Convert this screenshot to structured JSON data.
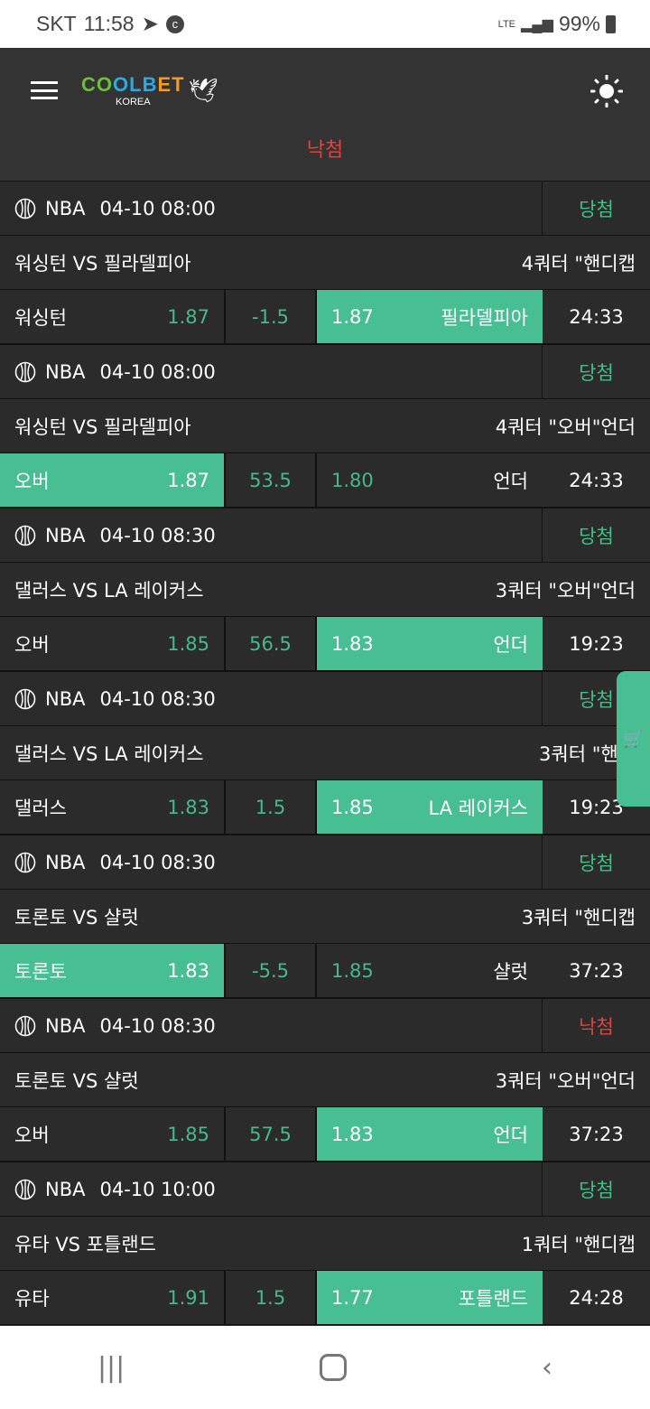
{
  "status": {
    "carrier": "SKT",
    "time": "11:58",
    "network": "LTE",
    "battery": "99%"
  },
  "header": {
    "logo_text": "COOLBET",
    "logo_sub": "KOREA"
  },
  "banner": "낙첨",
  "colors": {
    "accent": "#47bf93",
    "win": "#3ec184",
    "lose": "#e0423e"
  },
  "bets": [
    {
      "league": "NBA",
      "datetime": "04-10 08:00",
      "result": "당첨",
      "result_type": "win",
      "match": "워싱턴 VS 필라델피아",
      "market": "4쿼터 \"핸디캡",
      "home": "워싱턴",
      "home_odds": "1.87",
      "line": "-1.5",
      "away_odds": "1.87",
      "away": "필라델피아",
      "selected": "away",
      "time": "24:33"
    },
    {
      "league": "NBA",
      "datetime": "04-10 08:00",
      "result": "당첨",
      "result_type": "win",
      "match": "워싱턴 VS 필라델피아",
      "market": "4쿼터 \"오버\"언더",
      "home": "오버",
      "home_odds": "1.87",
      "line": "53.5",
      "away_odds": "1.80",
      "away": "언더",
      "selected": "home",
      "time": "24:33"
    },
    {
      "league": "NBA",
      "datetime": "04-10 08:30",
      "result": "당첨",
      "result_type": "win",
      "match": "댈러스 VS LA 레이커스",
      "market": "3쿼터 \"오버\"언더",
      "home": "오버",
      "home_odds": "1.85",
      "line": "56.5",
      "away_odds": "1.83",
      "away": "언더",
      "selected": "away",
      "time": "19:23"
    },
    {
      "league": "NBA",
      "datetime": "04-10 08:30",
      "result": "당첨",
      "result_type": "win",
      "match": "댈러스 VS LA 레이커스",
      "market": "3쿼터 \"핸디",
      "home": "댈러스",
      "home_odds": "1.83",
      "line": "1.5",
      "away_odds": "1.85",
      "away": "LA 레이커스",
      "selected": "away",
      "time": "19:23"
    },
    {
      "league": "NBA",
      "datetime": "04-10 08:30",
      "result": "당첨",
      "result_type": "win",
      "match": "토론토 VS 샬럿",
      "market": "3쿼터 \"핸디캡",
      "home": "토론토",
      "home_odds": "1.83",
      "line": "-5.5",
      "away_odds": "1.85",
      "away": "샬럿",
      "selected": "home",
      "time": "37:23"
    },
    {
      "league": "NBA",
      "datetime": "04-10 08:30",
      "result": "낙첨",
      "result_type": "lose",
      "match": "토론토 VS 샬럿",
      "market": "3쿼터 \"오버\"언더",
      "home": "오버",
      "home_odds": "1.85",
      "line": "57.5",
      "away_odds": "1.83",
      "away": "언더",
      "selected": "away",
      "time": "37:23"
    },
    {
      "league": "NBA",
      "datetime": "04-10 10:00",
      "result": "당첨",
      "result_type": "win",
      "match": "유타 VS 포틀랜드",
      "market": "1쿼터 \"핸디캡",
      "home": "유타",
      "home_odds": "1.91",
      "line": "1.5",
      "away_odds": "1.77",
      "away": "포틀랜드",
      "selected": "away",
      "time": "24:28"
    }
  ]
}
